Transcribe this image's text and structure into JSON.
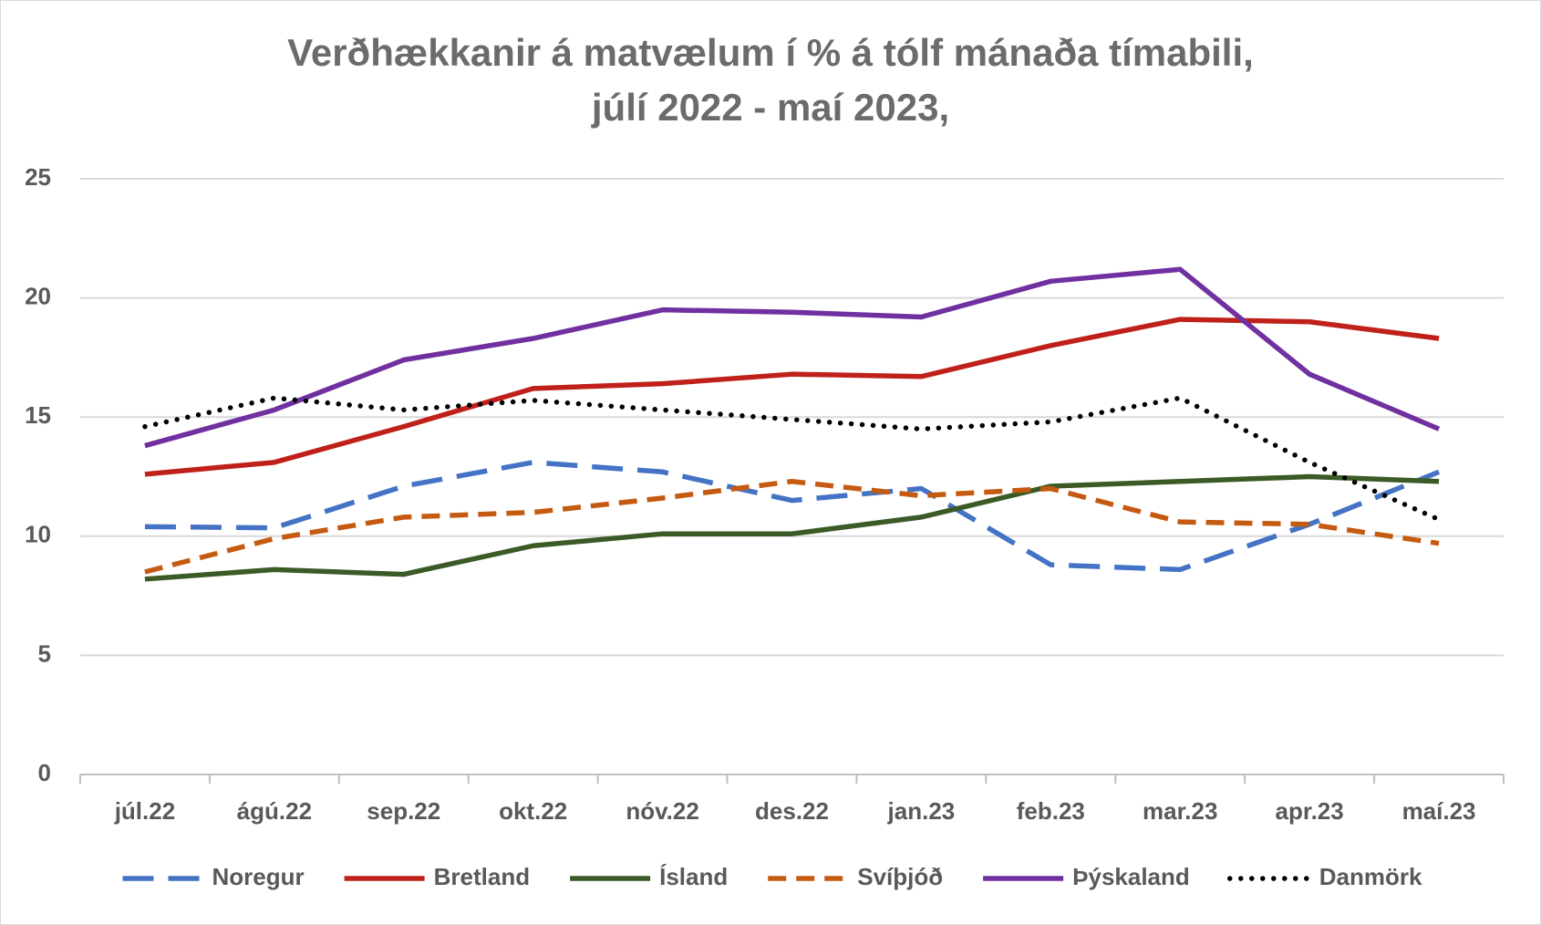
{
  "chart_data": {
    "type": "line",
    "title": [
      "Verðhækkanir á matvælum í % á tólf mánaða tímabili,",
      "júlí 2022 - maí 2023,"
    ],
    "categories": [
      "júl.22",
      "ágú.22",
      "sep.22",
      "okt.22",
      "nóv.22",
      "des.22",
      "jan.23",
      "feb.23",
      "mar.23",
      "apr.23",
      "maí.23"
    ],
    "series": [
      {
        "name": "Noregur",
        "color": "#4472c4",
        "dash": "long",
        "values": [
          10.4,
          10.35,
          12.1,
          13.1,
          12.7,
          11.5,
          12.0,
          8.8,
          8.6,
          10.5,
          12.7
        ]
      },
      {
        "name": "Bretland",
        "color": "#c0201a",
        "dash": "solid",
        "values": [
          12.6,
          13.1,
          14.6,
          16.2,
          16.4,
          16.8,
          16.7,
          18.0,
          19.1,
          19.0,
          18.3
        ]
      },
      {
        "name": "Ísland",
        "color": "#3b5a26",
        "dash": "solid",
        "values": [
          8.2,
          8.6,
          8.4,
          9.6,
          10.1,
          10.1,
          10.8,
          12.1,
          12.3,
          12.5,
          12.3
        ]
      },
      {
        "name": "Svíþjóð",
        "color": "#c55a11",
        "dash": "short",
        "values": [
          8.5,
          9.9,
          10.8,
          11.0,
          11.6,
          12.3,
          11.7,
          12.0,
          10.6,
          10.5,
          9.7
        ]
      },
      {
        "name": "Þýskaland",
        "color": "#7030a0",
        "dash": "solid",
        "values": [
          13.8,
          15.3,
          17.4,
          18.3,
          19.5,
          19.4,
          19.2,
          20.7,
          21.2,
          16.8,
          14.5
        ]
      },
      {
        "name": "Danmörk",
        "color": "#000000",
        "dash": "dot",
        "values": [
          14.6,
          15.8,
          15.3,
          15.7,
          15.3,
          14.9,
          14.5,
          14.8,
          15.8,
          13.1,
          10.7
        ]
      }
    ],
    "ylim": [
      0,
      25
    ],
    "yticks": [
      0,
      5,
      10,
      15,
      20,
      25
    ],
    "grid": true,
    "legend": "bottom"
  }
}
